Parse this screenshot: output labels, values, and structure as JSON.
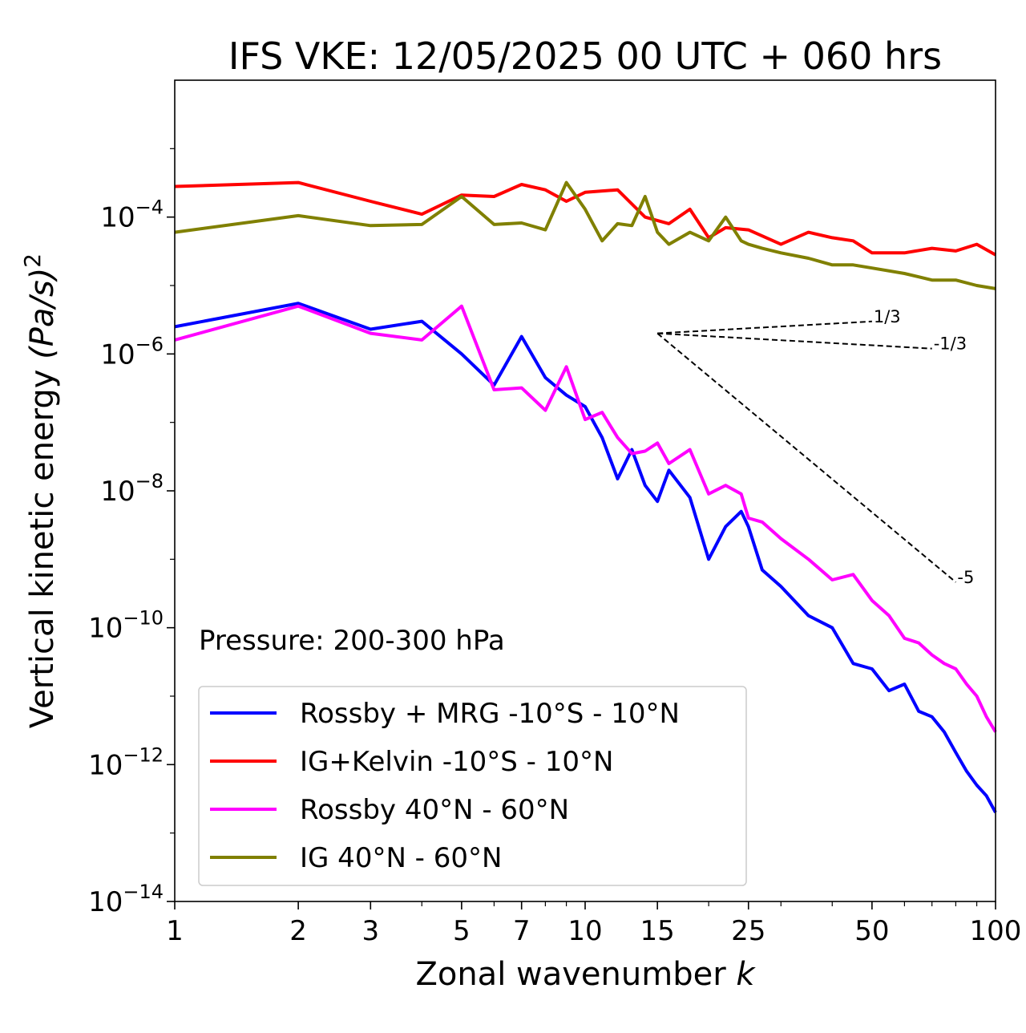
{
  "chart_data": {
    "type": "line",
    "title": "IFS VKE: 12/05/2025 00 UTC + 060 hrs",
    "xlabel": "Zonal wavenumber",
    "xlabel_var": "k",
    "ylabel": "Vertical kinetic energy",
    "ylabel_unit": "(Pa/s)",
    "ylabel_exp": "2",
    "xscale": "log",
    "yscale": "log",
    "xlim": [
      1,
      100
    ],
    "ylim": [
      1e-14,
      0.01
    ],
    "x_ticks": [
      {
        "value": 1,
        "label": "1"
      },
      {
        "value": 2,
        "label": "2"
      },
      {
        "value": 3,
        "label": "3"
      },
      {
        "value": 5,
        "label": "5"
      },
      {
        "value": 7,
        "label": "7"
      },
      {
        "value": 10,
        "label": "10"
      },
      {
        "value": 15,
        "label": "15"
      },
      {
        "value": 25,
        "label": "25"
      },
      {
        "value": 50,
        "label": "50"
      },
      {
        "value": 100,
        "label": "100"
      }
    ],
    "y_ticks": [
      {
        "value": 0.0001,
        "base": "10",
        "exp": "−4"
      },
      {
        "value": 1e-06,
        "base": "10",
        "exp": "−6"
      },
      {
        "value": 1e-08,
        "base": "10",
        "exp": "−8"
      },
      {
        "value": 1e-10,
        "base": "10",
        "exp": "−10"
      },
      {
        "value": 1e-12,
        "base": "10",
        "exp": "−12"
      },
      {
        "value": 1e-14,
        "base": "10",
        "exp": "−14"
      }
    ],
    "annotation": "Pressure: 200-300 hPa",
    "legend_position": "lower-left",
    "series": [
      {
        "name": "Rossby + MRG -10°S - 10°N",
        "color": "#0000ff",
        "x": [
          1,
          2,
          3,
          4,
          5,
          6,
          7,
          8,
          9,
          10,
          11,
          12,
          13,
          14,
          15,
          16,
          18,
          20,
          22,
          24,
          25,
          27,
          30,
          35,
          40,
          45,
          50,
          55,
          60,
          65,
          70,
          75,
          80,
          85,
          90,
          95,
          100
        ],
        "y": [
          2.5e-06,
          5.5e-06,
          2.3e-06,
          3e-06,
          1e-06,
          3.5e-07,
          1.8e-06,
          4.5e-07,
          2.5e-07,
          1.7e-07,
          6e-08,
          1.5e-08,
          4e-08,
          1.2e-08,
          7e-09,
          2e-08,
          8e-09,
          1e-09,
          3e-09,
          5e-09,
          3e-09,
          7e-10,
          4e-10,
          1.5e-10,
          1e-10,
          3e-11,
          2.5e-11,
          1.2e-11,
          1.5e-11,
          6e-12,
          5e-12,
          3e-12,
          1.5e-12,
          8e-13,
          5e-13,
          3.5e-13,
          2e-13
        ]
      },
      {
        "name": "IG+Kelvin -10°S - 10°N",
        "color": "#ff0000",
        "x": [
          1,
          2,
          3,
          4,
          5,
          6,
          7,
          8,
          9,
          10,
          12,
          14,
          16,
          18,
          20,
          22,
          25,
          30,
          35,
          40,
          45,
          50,
          60,
          70,
          80,
          90,
          100
        ],
        "y": [
          0.00028,
          0.00032,
          0.00017,
          0.00011,
          0.00021,
          0.0002,
          0.0003,
          0.00025,
          0.00017,
          0.00023,
          0.00025,
          0.0001,
          8e-05,
          0.00013,
          5e-05,
          7e-05,
          6.5e-05,
          4e-05,
          6e-05,
          5e-05,
          4.5e-05,
          3e-05,
          3e-05,
          3.5e-05,
          3.2e-05,
          4e-05,
          2.8e-05
        ]
      },
      {
        "name": "Rossby 40°N - 60°N",
        "color": "#ff00ff",
        "x": [
          1,
          2,
          3,
          4,
          5,
          6,
          7,
          8,
          9,
          10,
          11,
          12,
          13,
          14,
          15,
          16,
          18,
          20,
          22,
          24,
          25,
          27,
          30,
          35,
          40,
          45,
          50,
          55,
          60,
          65,
          70,
          75,
          80,
          85,
          90,
          95,
          100
        ],
        "y": [
          1.6e-06,
          5e-06,
          2e-06,
          1.6e-06,
          5e-06,
          3e-07,
          3.2e-07,
          1.5e-07,
          6.5e-07,
          1.1e-07,
          1.4e-07,
          6e-08,
          3.5e-08,
          3.8e-08,
          5e-08,
          2.5e-08,
          4e-08,
          9e-09,
          1.2e-08,
          9e-09,
          4e-09,
          3.5e-09,
          2e-09,
          1e-09,
          5e-10,
          6e-10,
          2.5e-10,
          1.5e-10,
          7e-11,
          6e-11,
          4e-11,
          3e-11,
          2.5e-11,
          1.5e-11,
          1e-11,
          5e-12,
          3e-12
        ]
      },
      {
        "name": "IG 40°N - 60°N",
        "color": "#808000",
        "x": [
          1,
          2,
          3,
          4,
          5,
          6,
          7,
          8,
          9,
          10,
          11,
          12,
          13,
          14,
          15,
          16,
          18,
          20,
          22,
          24,
          25,
          27,
          30,
          35,
          40,
          45,
          50,
          60,
          70,
          80,
          90,
          100
        ],
        "y": [
          6e-05,
          0.000105,
          7.5e-05,
          7.8e-05,
          0.0002,
          7.8e-05,
          8.2e-05,
          6.5e-05,
          0.00032,
          0.00013,
          4.5e-05,
          8e-05,
          7.5e-05,
          0.0002,
          6e-05,
          4e-05,
          6e-05,
          4.5e-05,
          0.0001,
          4.5e-05,
          4e-05,
          3.5e-05,
          3e-05,
          2.5e-05,
          2e-05,
          2e-05,
          1.8e-05,
          1.5e-05,
          1.2e-05,
          1.2e-05,
          1e-05,
          9e-06
        ]
      }
    ],
    "slope_guides": {
      "origin": [
        15,
        2e-06
      ],
      "lines": [
        {
          "label": "1/3",
          "end_x": 50
        },
        {
          "label": "-1/3",
          "end_x": 70
        },
        {
          "label": "-5",
          "end_x": 80
        }
      ]
    }
  }
}
